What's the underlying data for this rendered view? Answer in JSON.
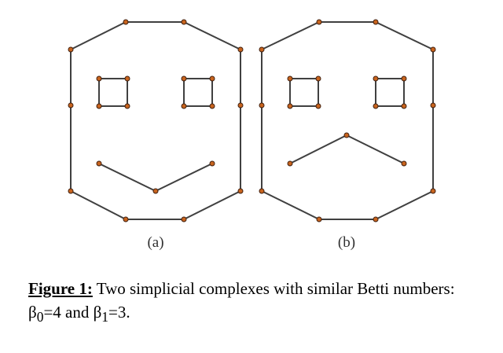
{
  "panels": [
    {
      "label": "(a)"
    },
    {
      "label": "(b)"
    }
  ],
  "caption": {
    "label": "Figure 1:",
    "text_1": " Two simplicial complexes with similar Betti numbers: β",
    "sub_0": "0",
    "text_2": "=4 and β",
    "sub_1": "1",
    "text_3": "=3."
  },
  "colors": {
    "edge": "#404040",
    "vertex": "#c8641e"
  }
}
